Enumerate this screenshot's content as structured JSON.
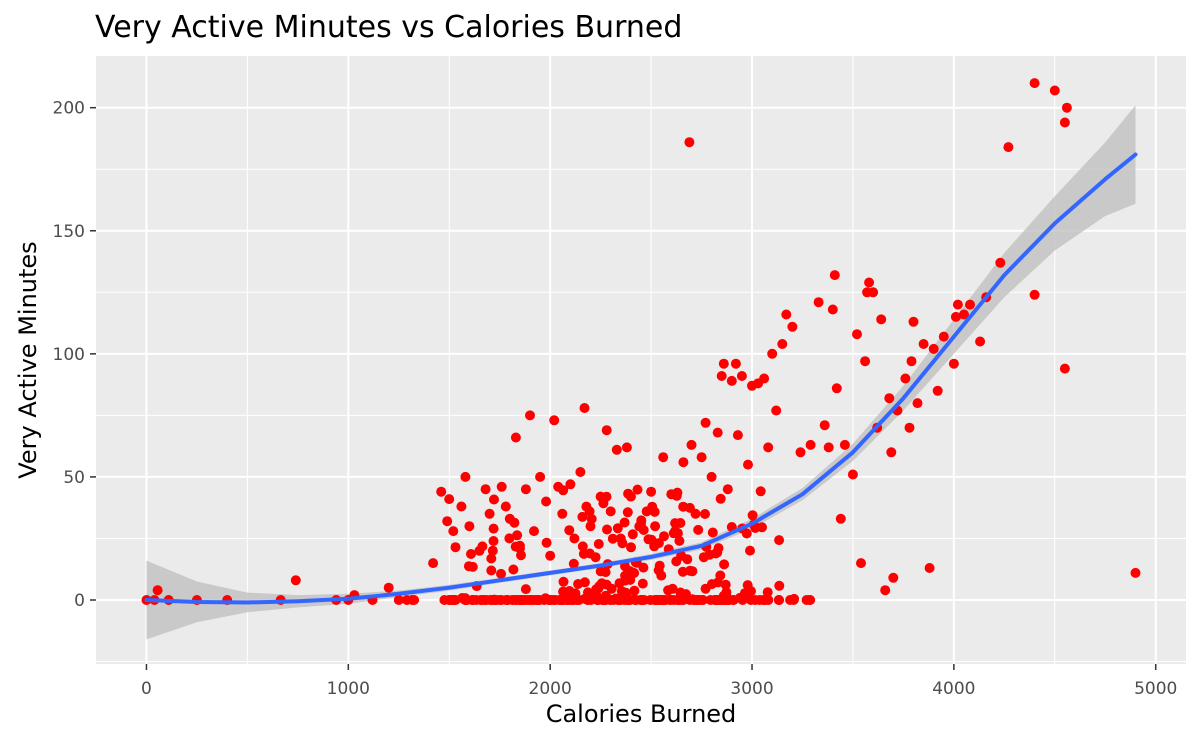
{
  "chart_data": {
    "type": "scatter",
    "title": "Very Active Minutes vs Calories Burned",
    "xlabel": "Calories Burned",
    "ylabel": "Very Active Minutes",
    "xlim": [
      -250,
      5150
    ],
    "ylim": [
      -26,
      221
    ],
    "x_ticks": [
      0,
      1000,
      2000,
      3000,
      4000,
      5000
    ],
    "x_tick_labels": [
      "0",
      "1000",
      "2000",
      "3000",
      "4000",
      "5000"
    ],
    "y_ticks": [
      0,
      50,
      100,
      150,
      200
    ],
    "y_tick_labels": [
      "0",
      "50",
      "100",
      "150",
      "200"
    ],
    "grid": true,
    "background": "#EBEBEB",
    "point_color": "#FF0000",
    "smooth_color": "#3366FF",
    "ribbon_color": "#BEBEBE",
    "smooth": {
      "method": "polynomial fit with confidence band",
      "x": [
        0,
        250,
        500,
        750,
        1000,
        1250,
        1500,
        1750,
        2000,
        2250,
        2500,
        2750,
        3000,
        3250,
        3500,
        3750,
        4000,
        4250,
        4500,
        4750,
        4900
      ],
      "y": [
        0,
        -0.8,
        -1.0,
        -0.5,
        0.5,
        2.5,
        5,
        8,
        11,
        14,
        17.5,
        22,
        31,
        43,
        60,
        82,
        107,
        132,
        153,
        171,
        181
      ],
      "lower": [
        -16,
        -9,
        -5,
        -3,
        -1.5,
        1.2,
        3.8,
        7,
        10,
        13,
        16.3,
        20.5,
        29,
        40.5,
        56.5,
        77,
        100,
        123,
        142,
        156,
        161
      ],
      "upper": [
        16,
        7.5,
        3,
        2,
        2.5,
        3.8,
        6.2,
        9,
        12,
        15,
        18.7,
        23.5,
        33,
        45.5,
        63.5,
        87,
        114,
        141,
        164,
        186,
        201
      ]
    },
    "points": [
      {
        "x": 0,
        "y": 0
      },
      {
        "x": 40,
        "y": 0
      },
      {
        "x": 55,
        "y": 4
      },
      {
        "x": 110,
        "y": 0
      },
      {
        "x": 250,
        "y": 0
      },
      {
        "x": 400,
        "y": 0
      },
      {
        "x": 665,
        "y": 0
      },
      {
        "x": 740,
        "y": 8
      },
      {
        "x": 940,
        "y": 0
      },
      {
        "x": 1000,
        "y": 0
      },
      {
        "x": 1030,
        "y": 2
      },
      {
        "x": 1120,
        "y": 0
      },
      {
        "x": 1200,
        "y": 5
      },
      {
        "x": 1250,
        "y": 0
      },
      {
        "x": 1290,
        "y": 0
      },
      {
        "x": 1420,
        "y": 15
      },
      {
        "x": 1460,
        "y": 44
      },
      {
        "x": 1490,
        "y": 32
      },
      {
        "x": 1500,
        "y": 41
      },
      {
        "x": 1520,
        "y": 28
      },
      {
        "x": 1560,
        "y": 38
      },
      {
        "x": 1580,
        "y": 50
      },
      {
        "x": 1600,
        "y": 30
      },
      {
        "x": 1650,
        "y": 20
      },
      {
        "x": 1680,
        "y": 45
      },
      {
        "x": 1700,
        "y": 35
      },
      {
        "x": 1720,
        "y": 29
      },
      {
        "x": 1760,
        "y": 46
      },
      {
        "x": 1780,
        "y": 38
      },
      {
        "x": 1800,
        "y": 33
      },
      {
        "x": 1830,
        "y": 66
      },
      {
        "x": 1850,
        "y": 22
      },
      {
        "x": 1880,
        "y": 45
      },
      {
        "x": 1900,
        "y": 75
      },
      {
        "x": 1920,
        "y": 28
      },
      {
        "x": 1950,
        "y": 50
      },
      {
        "x": 1980,
        "y": 40
      },
      {
        "x": 2000,
        "y": 18
      },
      {
        "x": 2020,
        "y": 73
      },
      {
        "x": 2040,
        "y": 46
      },
      {
        "x": 2060,
        "y": 35
      },
      {
        "x": 2100,
        "y": 47
      },
      {
        "x": 2120,
        "y": 25
      },
      {
        "x": 2150,
        "y": 52
      },
      {
        "x": 2170,
        "y": 78
      },
      {
        "x": 2200,
        "y": 30
      },
      {
        "x": 2250,
        "y": 42
      },
      {
        "x": 2280,
        "y": 69
      },
      {
        "x": 2300,
        "y": 36
      },
      {
        "x": 2330,
        "y": 61
      },
      {
        "x": 2350,
        "y": 25
      },
      {
        "x": 2380,
        "y": 62
      },
      {
        "x": 2400,
        "y": 42
      },
      {
        "x": 2450,
        "y": 31
      },
      {
        "x": 2500,
        "y": 44
      },
      {
        "x": 2520,
        "y": 30
      },
      {
        "x": 2560,
        "y": 58
      },
      {
        "x": 2600,
        "y": 43
      },
      {
        "x": 2640,
        "y": 24
      },
      {
        "x": 2660,
        "y": 56
      },
      {
        "x": 2690,
        "y": 186
      },
      {
        "x": 2700,
        "y": 63
      },
      {
        "x": 2720,
        "y": 35
      },
      {
        "x": 2750,
        "y": 58
      },
      {
        "x": 2770,
        "y": 72
      },
      {
        "x": 2800,
        "y": 50
      },
      {
        "x": 2830,
        "y": 68
      },
      {
        "x": 2850,
        "y": 91
      },
      {
        "x": 2860,
        "y": 96
      },
      {
        "x": 2880,
        "y": 45
      },
      {
        "x": 2900,
        "y": 89
      },
      {
        "x": 2920,
        "y": 96
      },
      {
        "x": 2930,
        "y": 67
      },
      {
        "x": 2950,
        "y": 91
      },
      {
        "x": 2980,
        "y": 55
      },
      {
        "x": 3000,
        "y": 87
      },
      {
        "x": 3030,
        "y": 88
      },
      {
        "x": 3060,
        "y": 90
      },
      {
        "x": 3080,
        "y": 62
      },
      {
        "x": 3100,
        "y": 100
      },
      {
        "x": 3120,
        "y": 77
      },
      {
        "x": 3150,
        "y": 104
      },
      {
        "x": 3170,
        "y": 116
      },
      {
        "x": 3200,
        "y": 111
      },
      {
        "x": 3240,
        "y": 60
      },
      {
        "x": 3290,
        "y": 63
      },
      {
        "x": 3330,
        "y": 121
      },
      {
        "x": 3360,
        "y": 71
      },
      {
        "x": 3380,
        "y": 62
      },
      {
        "x": 3400,
        "y": 118
      },
      {
        "x": 3410,
        "y": 132
      },
      {
        "x": 3420,
        "y": 86
      },
      {
        "x": 3440,
        "y": 33
      },
      {
        "x": 3460,
        "y": 63
      },
      {
        "x": 3500,
        "y": 51
      },
      {
        "x": 3520,
        "y": 108
      },
      {
        "x": 3540,
        "y": 15
      },
      {
        "x": 3560,
        "y": 97
      },
      {
        "x": 3570,
        "y": 125
      },
      {
        "x": 3580,
        "y": 129
      },
      {
        "x": 3600,
        "y": 125
      },
      {
        "x": 3620,
        "y": 70
      },
      {
        "x": 3640,
        "y": 114
      },
      {
        "x": 3660,
        "y": 4
      },
      {
        "x": 3680,
        "y": 82
      },
      {
        "x": 3690,
        "y": 60
      },
      {
        "x": 3700,
        "y": 9
      },
      {
        "x": 3720,
        "y": 77
      },
      {
        "x": 3760,
        "y": 90
      },
      {
        "x": 3780,
        "y": 70
      },
      {
        "x": 3790,
        "y": 97
      },
      {
        "x": 3800,
        "y": 113
      },
      {
        "x": 3820,
        "y": 80
      },
      {
        "x": 3850,
        "y": 104
      },
      {
        "x": 3880,
        "y": 13
      },
      {
        "x": 3900,
        "y": 102
      },
      {
        "x": 3920,
        "y": 85
      },
      {
        "x": 3950,
        "y": 107
      },
      {
        "x": 4000,
        "y": 96
      },
      {
        "x": 4010,
        "y": 115
      },
      {
        "x": 4020,
        "y": 120
      },
      {
        "x": 4050,
        "y": 116
      },
      {
        "x": 4080,
        "y": 120
      },
      {
        "x": 4130,
        "y": 105
      },
      {
        "x": 4160,
        "y": 123
      },
      {
        "x": 4230,
        "y": 137
      },
      {
        "x": 4270,
        "y": 184
      },
      {
        "x": 4400,
        "y": 124
      },
      {
        "x": 4400,
        "y": 210
      },
      {
        "x": 4500,
        "y": 207
      },
      {
        "x": 4550,
        "y": 194
      },
      {
        "x": 4550,
        "y": 94
      },
      {
        "x": 4560,
        "y": 200
      },
      {
        "x": 4900,
        "y": 11
      }
    ],
    "baseline_cluster": {
      "x_min": 1250,
      "x_max": 3300,
      "y": 0,
      "count": 180,
      "dense_x_min": 1500,
      "dense_x_max": 3000,
      "scatter_x_min": 1400,
      "scatter_x_max": 3300,
      "scatter_y_min": 0,
      "scatter_y_max": 45,
      "scatter_count": 170
    }
  }
}
